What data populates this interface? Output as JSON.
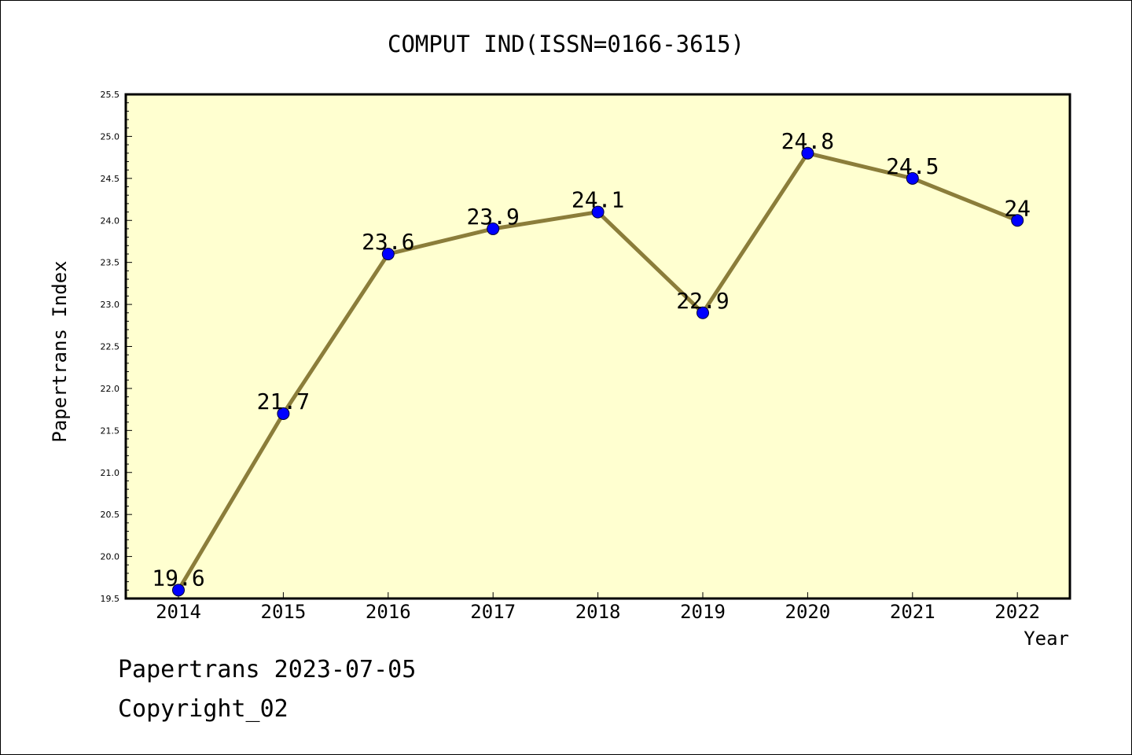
{
  "chart_data": {
    "type": "line",
    "title": "COMPUT IND(ISSN=0166-3615)",
    "xlabel": "Year",
    "ylabel": "Papertrans Index",
    "categories": [
      "2014",
      "2015",
      "2016",
      "2017",
      "2018",
      "2019",
      "2020",
      "2021",
      "2022"
    ],
    "series": [
      {
        "values": [
          19.6,
          21.7,
          23.6,
          23.9,
          24.1,
          22.9,
          24.8,
          24.5,
          24
        ],
        "labels": [
          "19.6",
          "21.7",
          "23.6",
          "23.9",
          "24.1",
          "22.9",
          "24.8",
          "24.5",
          "24"
        ]
      }
    ],
    "ylim": [
      19.5,
      25.5
    ],
    "yticks": [
      "19.5",
      "20.0",
      "20.5",
      "21.0",
      "21.5",
      "22.0",
      "22.5",
      "23.0",
      "23.5",
      "24.0",
      "24.5",
      "25.0",
      "25.5"
    ],
    "grid": false,
    "colors": {
      "plot_background": "#ffffd0",
      "line": "#8b7d3a",
      "marker": "#0000ff"
    }
  },
  "footer": {
    "line1": "Papertrans 2023-07-05",
    "line2": "Copyright_02"
  }
}
